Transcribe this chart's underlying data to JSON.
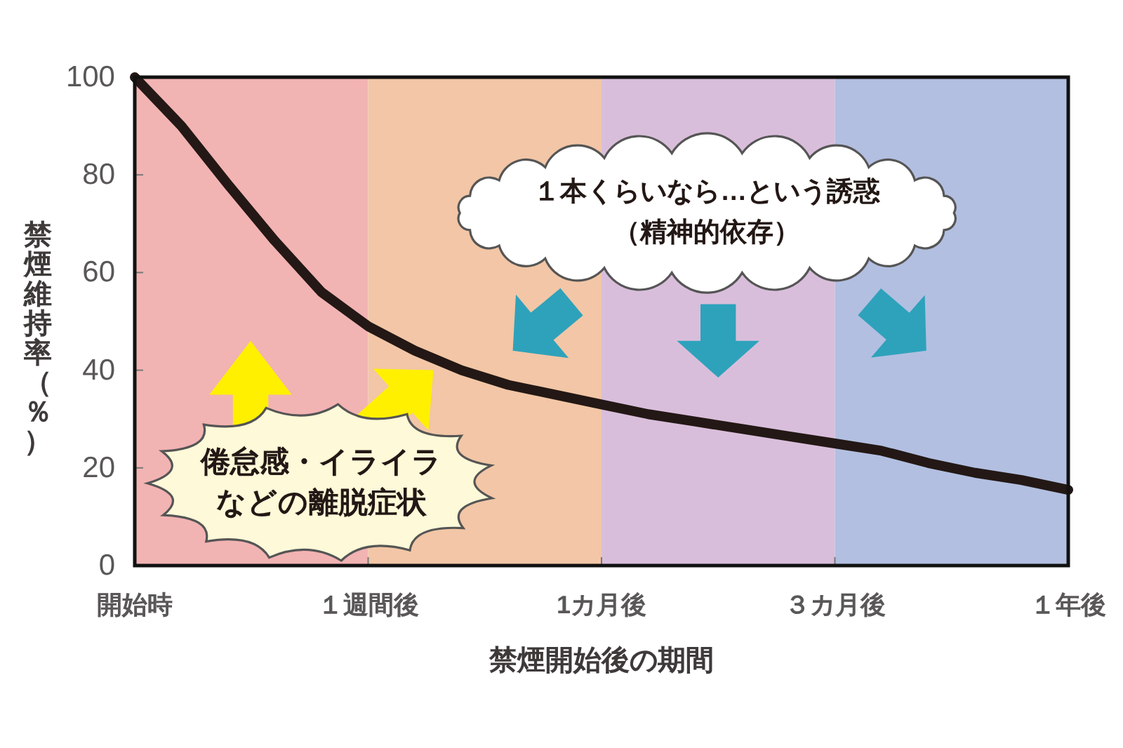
{
  "chart_data": {
    "type": "line",
    "xlabel": "禁煙開始後の期間",
    "ylabel": "禁煙維持率（％）",
    "categories": [
      "開始時",
      null,
      null,
      null,
      null,
      "１週間後",
      null,
      null,
      null,
      null,
      "1カ月後",
      null,
      null,
      null,
      null,
      "３カ月後",
      null,
      null,
      null,
      null,
      "１年後"
    ],
    "ylim": [
      0,
      100
    ],
    "yticks": [
      0,
      20,
      40,
      60,
      80,
      100
    ],
    "series": [
      {
        "color": "#231815",
        "values": [
          100,
          90,
          78,
          66.5,
          56,
          49,
          44,
          40,
          37,
          35,
          33,
          31,
          29.5,
          28,
          26.5,
          25,
          23.5,
          21,
          19,
          17.5,
          15.5
        ]
      }
    ],
    "bands": [
      {
        "axis": "x",
        "from": "開始時",
        "to": "１週間後",
        "color": "#f2b3b3"
      },
      {
        "axis": "x",
        "from": "１週間後",
        "to": "1カ月後",
        "color": "#f2c6a6"
      },
      {
        "axis": "x",
        "from": "1カ月後",
        "to": "３カ月後",
        "color": "#d9bedb"
      },
      {
        "axis": "x",
        "from": "３カ月後",
        "to": "１年後",
        "color": "#b2bfe1"
      }
    ],
    "annotations": [
      "１本くらいなら…という誘惑（精神的依存）",
      "倦怠感・イライラなどの離脱症状"
    ],
    "marker": "none",
    "line_style": "solid"
  }
}
